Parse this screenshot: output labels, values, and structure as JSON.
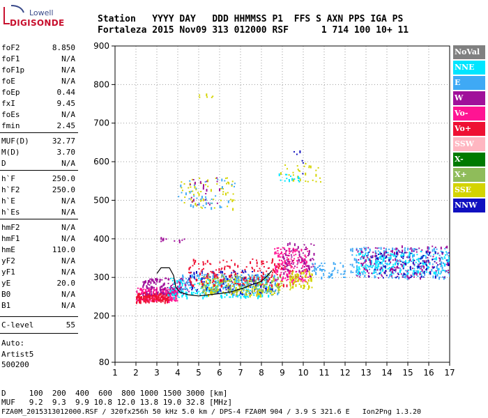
{
  "logo": {
    "top": "Lowell",
    "main": "DIGISONDE"
  },
  "header": {
    "row1": "Station   YYYY DAY   DDD HHMMSS P1  FFS S AXN PPS IGA PS",
    "row2": "Fortaleza 2015 Nov09 313 012000 RSF      1 714 100 10+ 11"
  },
  "params": [
    {
      "name": "foF2",
      "value": "8.850"
    },
    {
      "name": "foF1",
      "value": "N/A"
    },
    {
      "name": "foF1p",
      "value": "N/A"
    },
    {
      "name": "foE",
      "value": "N/A"
    },
    {
      "name": "foEp",
      "value": "0.44"
    },
    {
      "name": "fxI",
      "value": "9.45"
    },
    {
      "name": "foEs",
      "value": "N/A"
    },
    {
      "name": "fmin",
      "value": "2.45"
    },
    {
      "name": "MUF(D)",
      "value": "32.77"
    },
    {
      "name": "M(D)",
      "value": "3.70"
    },
    {
      "name": "D",
      "value": "N/A"
    },
    {
      "name": "h`F",
      "value": "250.0"
    },
    {
      "name": "h`F2",
      "value": "250.0"
    },
    {
      "name": "h`E",
      "value": "N/A"
    },
    {
      "name": "h`Es",
      "value": "N/A"
    },
    {
      "name": "hmF2",
      "value": "N/A"
    },
    {
      "name": "hmF1",
      "value": "N/A"
    },
    {
      "name": "hmE",
      "value": "110.0"
    },
    {
      "name": "yF2",
      "value": "N/A"
    },
    {
      "name": "yF1",
      "value": "N/A"
    },
    {
      "name": "yE",
      "value": "20.0"
    },
    {
      "name": "B0",
      "value": "N/A"
    },
    {
      "name": "B1",
      "value": "N/A"
    },
    {
      "name": "C-level",
      "value": "55"
    }
  ],
  "autoscale": {
    "line1": "Auto:",
    "line2": "Artist5",
    "line3": "500200"
  },
  "legend": [
    {
      "label": "NoVal",
      "color": "#808080",
      "text": "#ffffff"
    },
    {
      "label": "NNE",
      "color": "#00e5ff",
      "text": "#ffffff"
    },
    {
      "label": "E",
      "color": "#3fa9f5",
      "text": "#ffffff"
    },
    {
      "label": "W",
      "color": "#a0109a",
      "text": "#ffffff"
    },
    {
      "label": "Vo-",
      "color": "#ff1493",
      "text": "#ffffff"
    },
    {
      "label": "Vo+",
      "color": "#ee1133",
      "text": "#ffffff"
    },
    {
      "label": "SSW",
      "color": "#ffb6c1",
      "text": "#ffffff"
    },
    {
      "label": "X-",
      "color": "#007a00",
      "text": "#ffffff"
    },
    {
      "label": "X+",
      "color": "#8fbc5a",
      "text": "#ffffff"
    },
    {
      "label": "SSE",
      "color": "#d4d400",
      "text": "#ffffff"
    },
    {
      "label": "NNW",
      "color": "#1010c0",
      "text": "#ffffff"
    }
  ],
  "footer": {
    "dist_line": "D     100  200  400  600  800 1000 1500 3000 [km]",
    "muf_line": "MUF   9.2  9.3  9.9 10.8 12.0 13.8 19.0 32.8 [MHz]",
    "file_line": "FZA0M_2015313012000.RSF / 320fx256h 50 kHz 5.0 km / DPS-4 FZA0M 904 / 3.9 S 321.6 E   Ion2Png 1.3.20"
  },
  "chart_data": {
    "type": "scatter",
    "xlim": [
      1,
      17
    ],
    "ylim": [
      80,
      900
    ],
    "xticks": [
      1,
      2,
      3,
      4,
      5,
      6,
      7,
      8,
      9,
      10,
      11,
      12,
      13,
      14,
      15,
      16,
      17
    ],
    "yticks": [
      80,
      200,
      300,
      400,
      500,
      600,
      700,
      800,
      900
    ],
    "xlabel": "",
    "ylabel": "",
    "grid": "dotted",
    "clusters": [
      {
        "color": "#ff1493",
        "x": [
          2.0,
          4.0
        ],
        "y": [
          240,
          275
        ],
        "n": 220
      },
      {
        "color": "#ee1133",
        "x": [
          2.0,
          3.6
        ],
        "y": [
          238,
          262
        ],
        "n": 150
      },
      {
        "color": "#a0109a",
        "x": [
          2.3,
          4.5
        ],
        "y": [
          258,
          300
        ],
        "n": 140
      },
      {
        "color": "#00e5ff",
        "x": [
          3.5,
          8.5
        ],
        "y": [
          250,
          300
        ],
        "n": 220
      },
      {
        "color": "#3fa9f5",
        "x": [
          4.0,
          8.8
        ],
        "y": [
          255,
          310
        ],
        "n": 200
      },
      {
        "color": "#1010c0",
        "x": [
          4.5,
          8.5
        ],
        "y": [
          260,
          320
        ],
        "n": 120
      },
      {
        "color": "#d4d400",
        "x": [
          5.0,
          9.0
        ],
        "y": [
          255,
          300
        ],
        "n": 140
      },
      {
        "color": "#8fbc5a",
        "x": [
          5.0,
          9.0
        ],
        "y": [
          260,
          310
        ],
        "n": 100
      },
      {
        "color": "#ee1133",
        "x": [
          4.5,
          9.5
        ],
        "y": [
          280,
          350
        ],
        "n": 180
      },
      {
        "color": "#ff1493",
        "x": [
          8.6,
          10.2
        ],
        "y": [
          290,
          380
        ],
        "n": 160
      },
      {
        "color": "#a0109a",
        "x": [
          9.0,
          10.5
        ],
        "y": [
          300,
          395
        ],
        "n": 90
      },
      {
        "color": "#d4d400",
        "x": [
          9.3,
          10.4
        ],
        "y": [
          270,
          320
        ],
        "n": 70
      },
      {
        "color": "#3fa9f5",
        "x": [
          10.4,
          12.0
        ],
        "y": [
          300,
          340
        ],
        "n": 50
      },
      {
        "color": "#3fa9f5",
        "x": [
          12.2,
          17.0
        ],
        "y": [
          300,
          380
        ],
        "n": 260
      },
      {
        "color": "#00e5ff",
        "x": [
          12.5,
          17.0
        ],
        "y": [
          310,
          370
        ],
        "n": 180
      },
      {
        "color": "#a0109a",
        "x": [
          12.5,
          17.0
        ],
        "y": [
          300,
          385
        ],
        "n": 150
      },
      {
        "color": "#1010c0",
        "x": [
          13.0,
          17.0
        ],
        "y": [
          300,
          370
        ],
        "n": 90
      },
      {
        "color": "#d4d400",
        "x": [
          4.0,
          6.7
        ],
        "y": [
          480,
          560
        ],
        "n": 60
      },
      {
        "color": "#3fa9f5",
        "x": [
          4.0,
          6.7
        ],
        "y": [
          480,
          560
        ],
        "n": 40
      },
      {
        "color": "#a0109a",
        "x": [
          4.5,
          6.0
        ],
        "y": [
          490,
          560
        ],
        "n": 20
      },
      {
        "color": "#d4d400",
        "x": [
          8.8,
          10.8
        ],
        "y": [
          548,
          600
        ],
        "n": 30
      },
      {
        "color": "#1010c0",
        "x": [
          9.5,
          10.0
        ],
        "y": [
          560,
          640
        ],
        "n": 6
      },
      {
        "color": "#00e5ff",
        "x": [
          8.8,
          9.8
        ],
        "y": [
          545,
          570
        ],
        "n": 15
      },
      {
        "color": "#d4d400",
        "x": [
          5.0,
          5.7
        ],
        "y": [
          765,
          778
        ],
        "n": 6
      },
      {
        "color": "#a0109a",
        "x": [
          2.9,
          4.5
        ],
        "y": [
          395,
          405
        ],
        "n": 10
      }
    ],
    "trace": {
      "color": "#000000",
      "x": [
        3.0,
        3.2,
        3.6,
        3.8,
        3.9,
        4.1,
        4.5,
        5.0,
        5.5,
        6.0,
        6.5,
        7.0,
        7.5,
        8.0,
        8.3,
        8.5
      ],
      "y": [
        310,
        325,
        325,
        305,
        275,
        262,
        255,
        252,
        255,
        258,
        262,
        270,
        280,
        290,
        305,
        318
      ]
    }
  }
}
